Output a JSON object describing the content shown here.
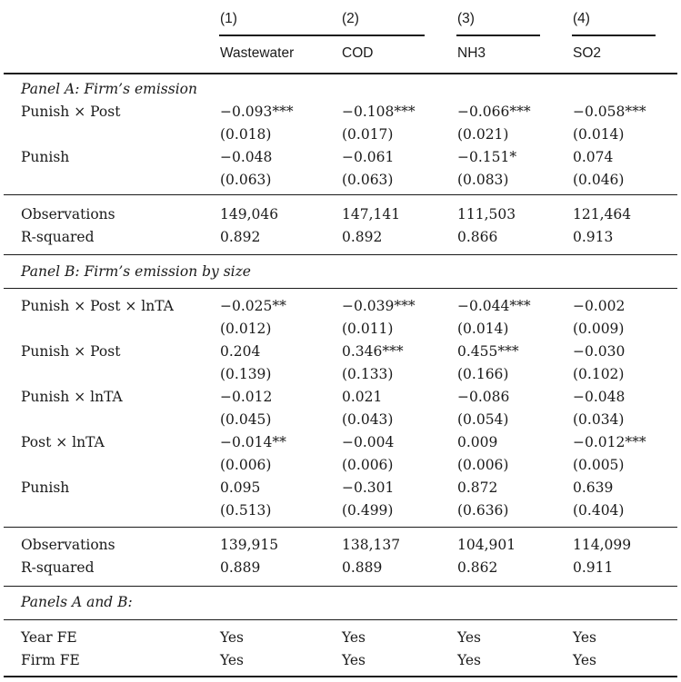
{
  "columns": [
    {
      "num": "(1)",
      "name": "Wastewater"
    },
    {
      "num": "(2)",
      "name": "COD"
    },
    {
      "num": "(3)",
      "name": "NH3"
    },
    {
      "num": "(4)",
      "name": "SO2"
    }
  ],
  "panelA": {
    "title": "Panel A: Firm’s emission",
    "rows": [
      {
        "label": "Punish × Post",
        "values": [
          "−0.093***",
          "−0.108***",
          "−0.066***",
          "−0.058***"
        ]
      },
      {
        "label": "",
        "values": [
          "(0.018)",
          "(0.017)",
          "(0.021)",
          "(0.014)"
        ]
      },
      {
        "label": "Punish",
        "values": [
          "−0.048",
          "−0.061",
          "−0.151*",
          "0.074"
        ]
      },
      {
        "label": "",
        "values": [
          "(0.063)",
          "(0.063)",
          "(0.083)",
          "(0.046)"
        ]
      }
    ],
    "stats": [
      {
        "label": "Observations",
        "values": [
          "149,046",
          "147,141",
          "111,503",
          "121,464"
        ]
      },
      {
        "label": "R-squared",
        "values": [
          "0.892",
          "0.892",
          "0.866",
          "0.913"
        ]
      }
    ]
  },
  "panelB": {
    "title": "Panel B: Firm’s emission by size",
    "rows": [
      {
        "label": "Punish × Post × lnTA",
        "values": [
          "−0.025**",
          "−0.039***",
          "−0.044***",
          "−0.002"
        ]
      },
      {
        "label": "",
        "values": [
          "(0.012)",
          "(0.011)",
          "(0.014)",
          "(0.009)"
        ]
      },
      {
        "label": "Punish × Post",
        "values": [
          "0.204",
          "0.346***",
          "0.455***",
          "−0.030"
        ]
      },
      {
        "label": "",
        "values": [
          "(0.139)",
          "(0.133)",
          "(0.166)",
          "(0.102)"
        ]
      },
      {
        "label": "Punish × lnTA",
        "values": [
          "−0.012",
          "0.021",
          "−0.086",
          "−0.048"
        ]
      },
      {
        "label": "",
        "values": [
          "(0.045)",
          "(0.043)",
          "(0.054)",
          "(0.034)"
        ]
      },
      {
        "label": "Post × lnTA",
        "values": [
          "−0.014**",
          "−0.004",
          "0.009",
          "−0.012***"
        ]
      },
      {
        "label": "",
        "values": [
          "(0.006)",
          "(0.006)",
          "(0.006)",
          "(0.005)"
        ]
      },
      {
        "label": "Punish",
        "values": [
          "0.095",
          "−0.301",
          "0.872",
          "0.639"
        ]
      },
      {
        "label": "",
        "values": [
          "(0.513)",
          "(0.499)",
          "(0.636)",
          "(0.404)"
        ]
      }
    ],
    "stats": [
      {
        "label": "Observations",
        "values": [
          "139,915",
          "138,137",
          "104,901",
          "114,099"
        ]
      },
      {
        "label": "R-squared",
        "values": [
          "0.889",
          "0.889",
          "0.862",
          "0.911"
        ]
      }
    ]
  },
  "panelsAB": {
    "title": "Panels A and B:",
    "rows": [
      {
        "label": "Year FE",
        "values": [
          "Yes",
          "Yes",
          "Yes",
          "Yes"
        ]
      },
      {
        "label": "Firm FE",
        "values": [
          "Yes",
          "Yes",
          "Yes",
          "Yes"
        ]
      }
    ]
  }
}
